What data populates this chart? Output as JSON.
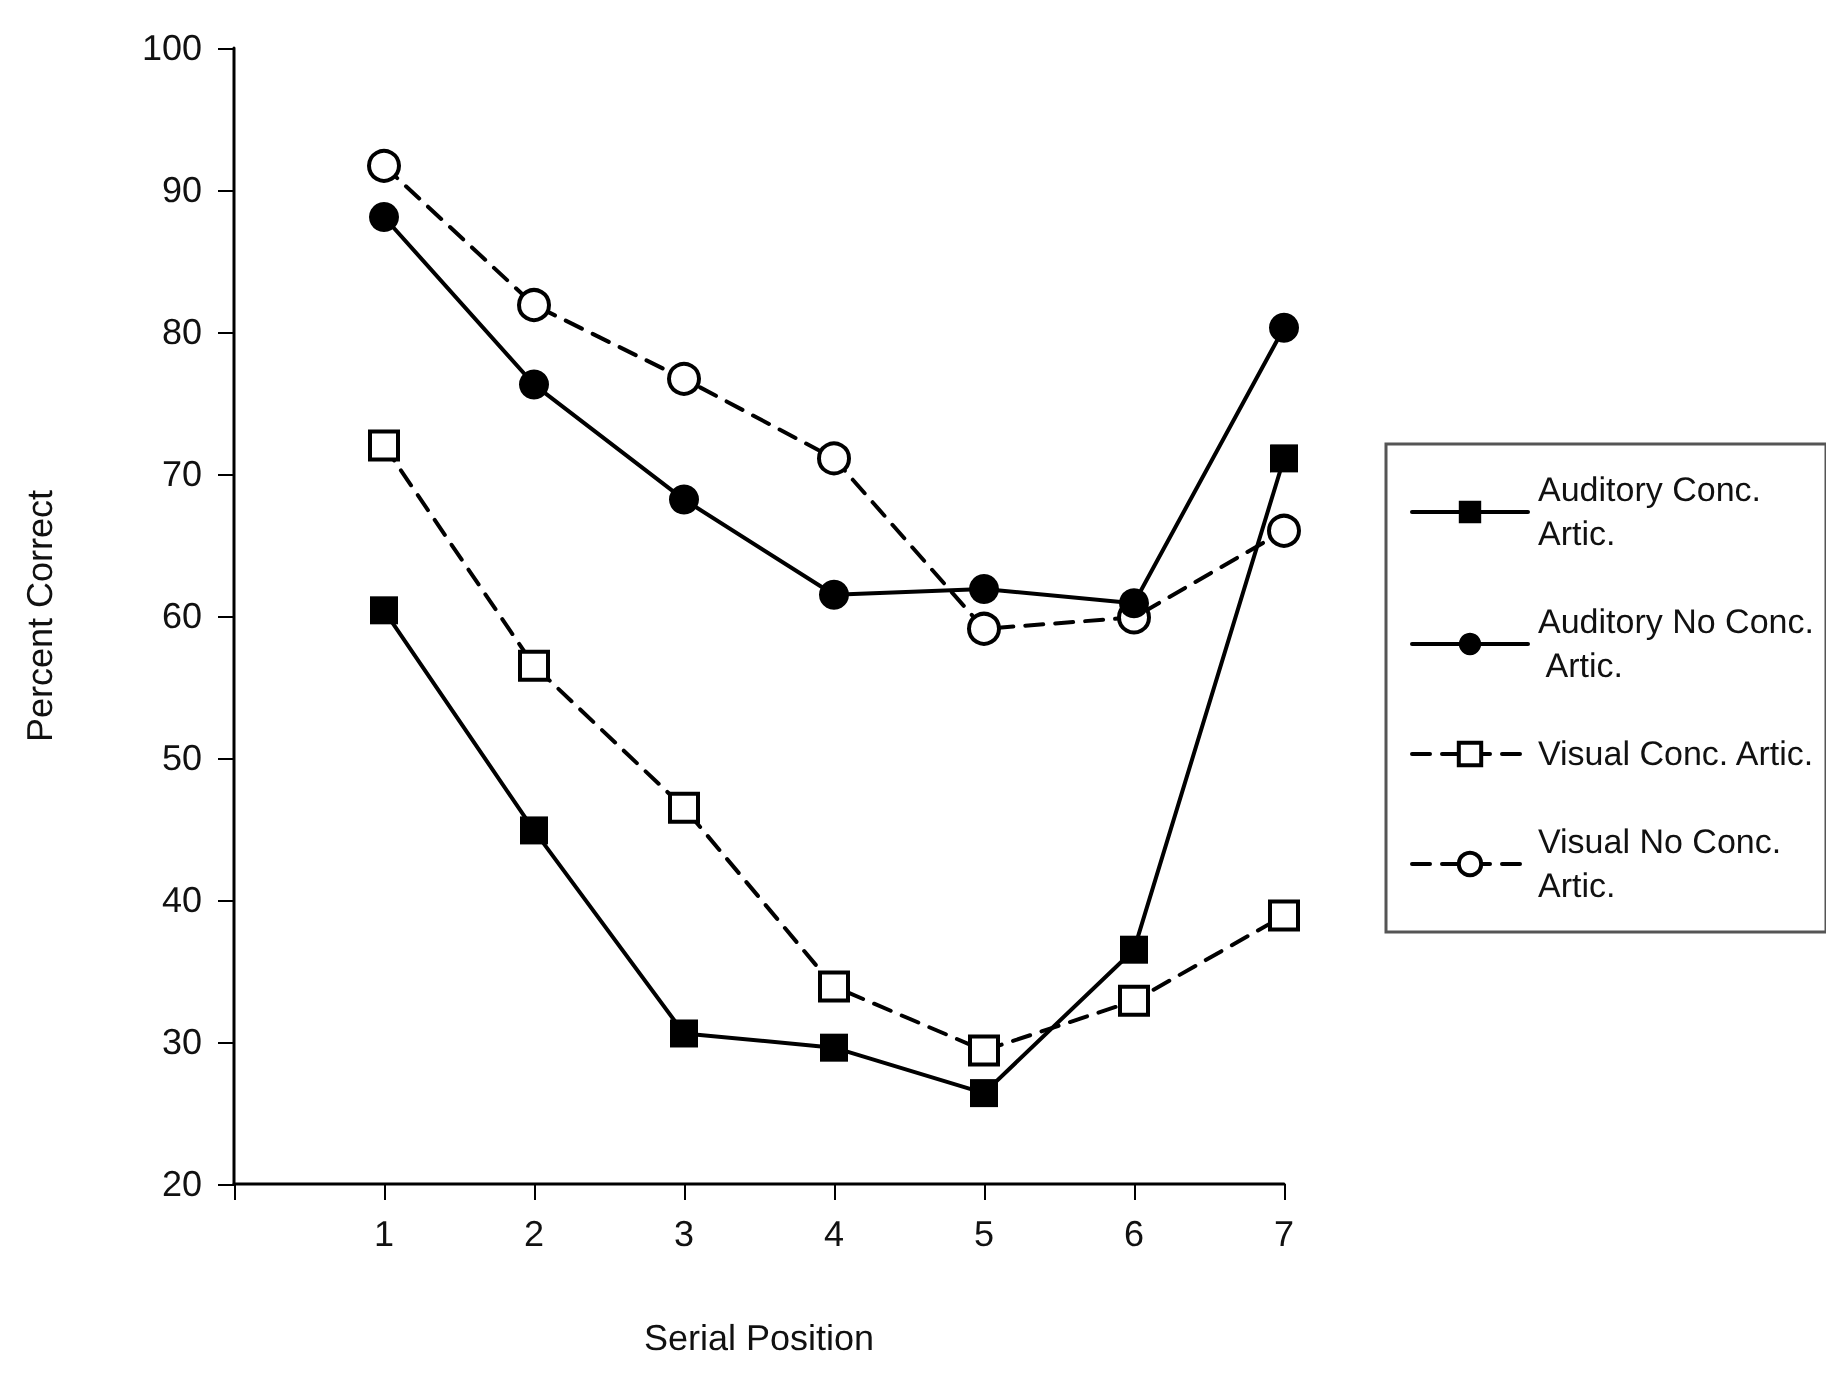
{
  "chart_data": {
    "type": "line",
    "xlabel": "Serial Position",
    "ylabel": "Percent Correct",
    "x": [
      1,
      2,
      3,
      4,
      5,
      6,
      7
    ],
    "xlim": [
      0,
      7
    ],
    "xticks": [
      {
        "value": 0,
        "label": null
      },
      1,
      2,
      3,
      4,
      5,
      6,
      7
    ],
    "ylim": [
      20,
      100
    ],
    "yticks": [
      20,
      30,
      40,
      50,
      60,
      70,
      80,
      90,
      100
    ],
    "grid": false,
    "legend": "right",
    "series": [
      {
        "name": "Auditory Conc. Artic.",
        "color": "#000000",
        "marker": "square",
        "line_style": "solid",
        "values": [
          60.4,
          44.9,
          30.6,
          29.6,
          26.4,
          36.5,
          71.1
        ]
      },
      {
        "name": "Auditory No Conc. Artic.",
        "color": "#000000",
        "marker": "circle",
        "line_style": "solid",
        "values": [
          88.1,
          76.3,
          68.2,
          61.5,
          61.9,
          60.9,
          80.3
        ]
      },
      {
        "name": "Visual Conc. Artic.",
        "color": "#000000",
        "marker": "square",
        "line_style": "dashed",
        "values": [
          72.0,
          56.5,
          46.5,
          33.9,
          29.4,
          32.9,
          38.9
        ]
      },
      {
        "name": "Visual No Conc. Artic.",
        "color": "#000000",
        "marker": "circle",
        "line_style": "dashed",
        "values": [
          91.7,
          81.9,
          76.7,
          71.1,
          59.1,
          59.9,
          66.0
        ]
      }
    ]
  }
}
